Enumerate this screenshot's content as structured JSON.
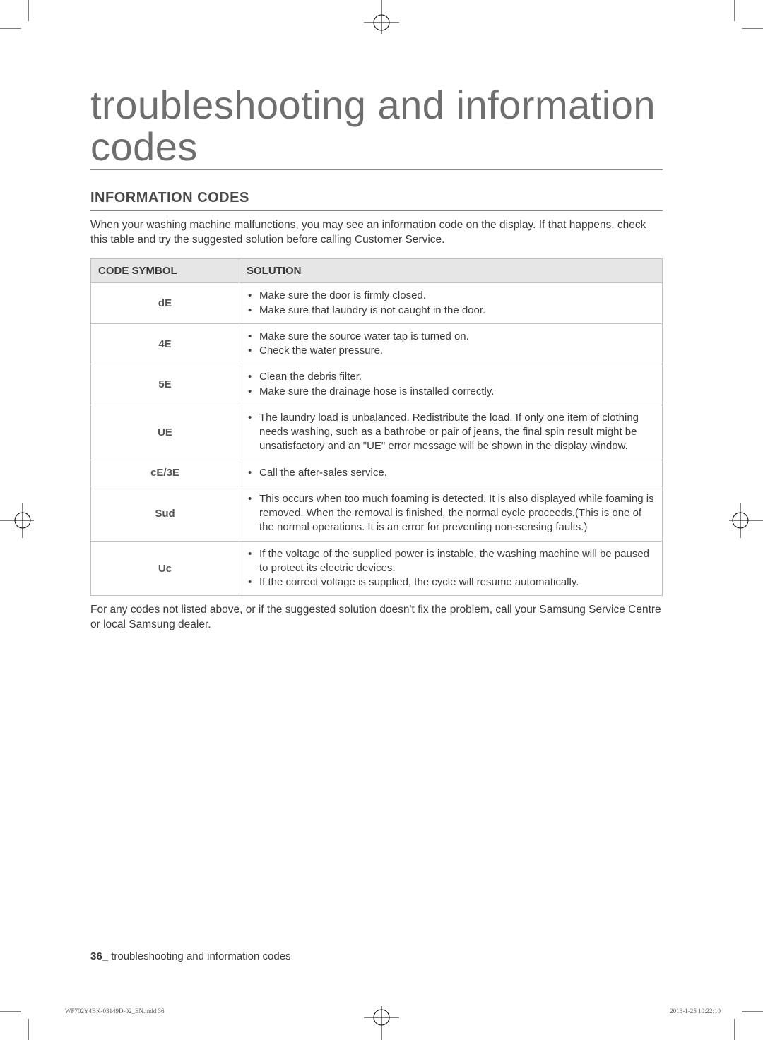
{
  "page": {
    "title": "troubleshooting and information codes",
    "section_heading": "INFORMATION CODES",
    "intro": "When your washing machine malfunctions, you may see an information code on the display. If that happens, check this table and try the suggested solution before calling Customer Service.",
    "after_table": "For any codes not listed above, or if the suggested solution doesn't fix the problem, call your Samsung Service Centre or local Samsung dealer.",
    "footer_pagenum": "36_",
    "footer_text": " troubleshooting and information codes",
    "print_meta_left": "WF702Y4BK-03149D-02_EN.indd   36",
    "print_meta_right": "2013-1-25   10:22:10"
  },
  "table": {
    "header_code": "CODE SYMBOL",
    "header_solution": "SOLUTION",
    "rows": [
      {
        "code": "dE",
        "solutions": [
          "Make sure the door is firmly closed.",
          "Make sure that laundry is not caught in the door."
        ]
      },
      {
        "code": "4E",
        "solutions": [
          "Make sure the source water tap is turned on.",
          "Check the water pressure."
        ]
      },
      {
        "code": "5E",
        "solutions": [
          "Clean the debris filter.",
          "Make sure the drainage hose is installed correctly."
        ]
      },
      {
        "code": "UE",
        "solutions": [
          "The laundry load is unbalanced. Redistribute the load. If only one item of clothing needs washing, such as a bathrobe or pair of jeans, the final spin result might be unsatisfactory and an \"UE\" error message will be shown in the display window."
        ]
      },
      {
        "code": "cE/3E",
        "solutions": [
          "Call the after-sales service."
        ]
      },
      {
        "code": "Sud",
        "solutions": [
          "This occurs when too much foaming is detected. It is also displayed while foaming is removed. When the removal is finished, the normal cycle proceeds.(This is one of the normal operations. It is an error for preventing non-sensing faults.)"
        ]
      },
      {
        "code": "Uc",
        "solutions": [
          "If the voltage of the supplied power is instable, the washing machine will be paused to protect its electric devices.",
          "If the correct voltage is supplied, the cycle will resume automatically."
        ]
      }
    ]
  },
  "style": {
    "colors": {
      "text": "#3a3a3a",
      "title": "#6e6e6e",
      "rule": "#888888",
      "table_border": "#bfbfbf",
      "table_header_bg": "#e6e6e6",
      "background": "#ffffff"
    },
    "fonts": {
      "title_size_pt": 42,
      "title_weight": 200,
      "heading_size_pt": 15,
      "heading_weight": 700,
      "body_size_pt": 11.5,
      "meta_size_pt": 7
    }
  }
}
